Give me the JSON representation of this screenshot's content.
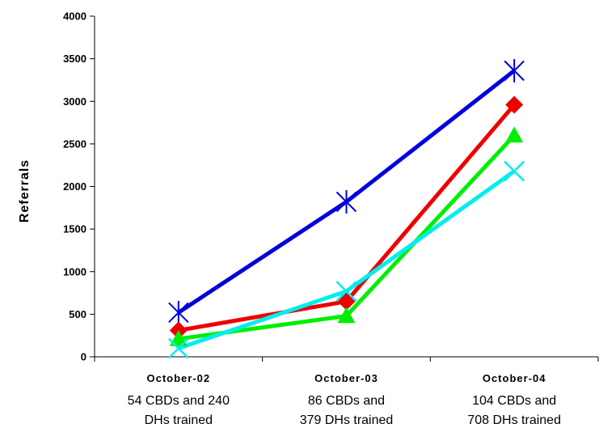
{
  "chart_data": {
    "type": "line",
    "title": "",
    "ylabel": "Referrals",
    "xlabel": "",
    "ylim": [
      0,
      4000
    ],
    "yticks": [
      0,
      500,
      1000,
      1500,
      2000,
      2500,
      3000,
      3500,
      4000
    ],
    "categories": [
      {
        "title": "October-02",
        "lines": [
          "54 CBDs and 240",
          "DHs trained"
        ]
      },
      {
        "title": "October-03",
        "lines": [
          "86 CBDs and",
          "379 DHs trained"
        ]
      },
      {
        "title": "October-04",
        "lines": [
          "104 CBDs and",
          "708 DHs trained"
        ]
      }
    ],
    "series": [
      {
        "color": "#0000dd",
        "marker": "asterisk",
        "values": [
          520,
          1820,
          3360
        ]
      },
      {
        "color": "#ee0000",
        "marker": "diamond",
        "values": [
          310,
          650,
          2960
        ]
      },
      {
        "color": "#00ee00",
        "marker": "triangle",
        "values": [
          210,
          480,
          2600
        ]
      },
      {
        "color": "#00eeee",
        "marker": "x",
        "values": [
          100,
          770,
          2180
        ]
      }
    ],
    "grid": false,
    "legend": "none"
  }
}
